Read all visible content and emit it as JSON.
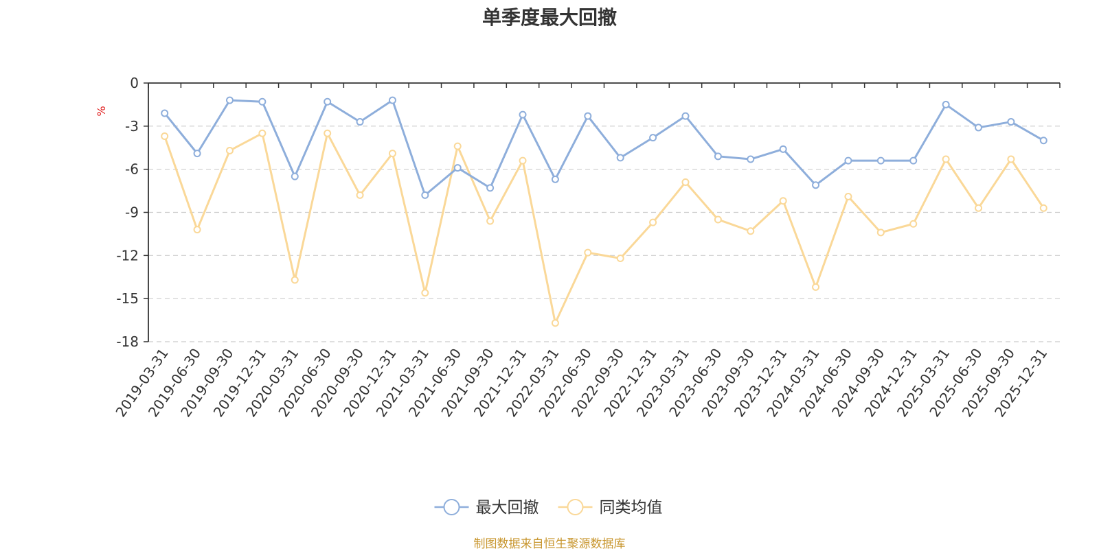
{
  "chart_data": {
    "type": "line",
    "title": "单季度最大回撤",
    "ylabel": "%",
    "ylim": [
      -18,
      0
    ],
    "yticks": [
      "0",
      "-3",
      "-6",
      "-9",
      "-12",
      "-15",
      "-18"
    ],
    "yticks_values": [
      0,
      -3,
      -6,
      -9,
      -12,
      -15,
      -18
    ],
    "grid": true,
    "legend_position": "bottom-center",
    "categories": [
      "2019-03-31",
      "2019-06-30",
      "2019-09-30",
      "2019-12-31",
      "2020-03-31",
      "2020-06-30",
      "2020-09-30",
      "2020-12-31",
      "2021-03-31",
      "2021-06-30",
      "2021-09-30",
      "2021-12-31",
      "2022-03-31",
      "2022-06-30",
      "2022-09-30",
      "2022-12-31",
      "2023-03-31",
      "2023-06-30",
      "2023-09-30",
      "2023-12-31",
      "2024-03-31",
      "2024-06-30",
      "2024-09-30",
      "2024-12-31",
      "2025-03-31",
      "2025-06-30",
      "2025-09-30",
      "2025-12-31"
    ],
    "series": [
      {
        "name": "最大回撤",
        "color": "#8eaedb",
        "values": [
          -2.1,
          -4.9,
          -1.2,
          -1.3,
          -6.5,
          -1.3,
          -2.7,
          -1.2,
          -7.8,
          -5.9,
          -7.3,
          -2.2,
          -6.7,
          -2.3,
          -5.2,
          -3.8,
          -2.3,
          -5.1,
          -5.3,
          -4.6,
          -7.1,
          -5.4,
          -5.4,
          -5.4,
          -1.5,
          -3.1,
          -2.7,
          -4.0
        ]
      },
      {
        "name": "同类均值",
        "color": "#fad898",
        "values": [
          -3.7,
          -10.2,
          -4.7,
          -3.5,
          -13.7,
          -3.5,
          -7.8,
          -4.9,
          -14.6,
          -4.4,
          -9.6,
          -5.4,
          -16.7,
          -11.8,
          -12.2,
          -9.7,
          -6.9,
          -9.5,
          -10.3,
          -8.2,
          -14.2,
          -7.9,
          -10.4,
          -9.8,
          -5.3,
          -8.7,
          -5.3,
          -8.7
        ]
      }
    ]
  },
  "footer": {
    "source": "制图数据来自恒生聚源数据库"
  },
  "colors": {
    "axis": "#333333",
    "grid": "#cccccc",
    "unit": "#e02020",
    "source": "#c8962e"
  }
}
